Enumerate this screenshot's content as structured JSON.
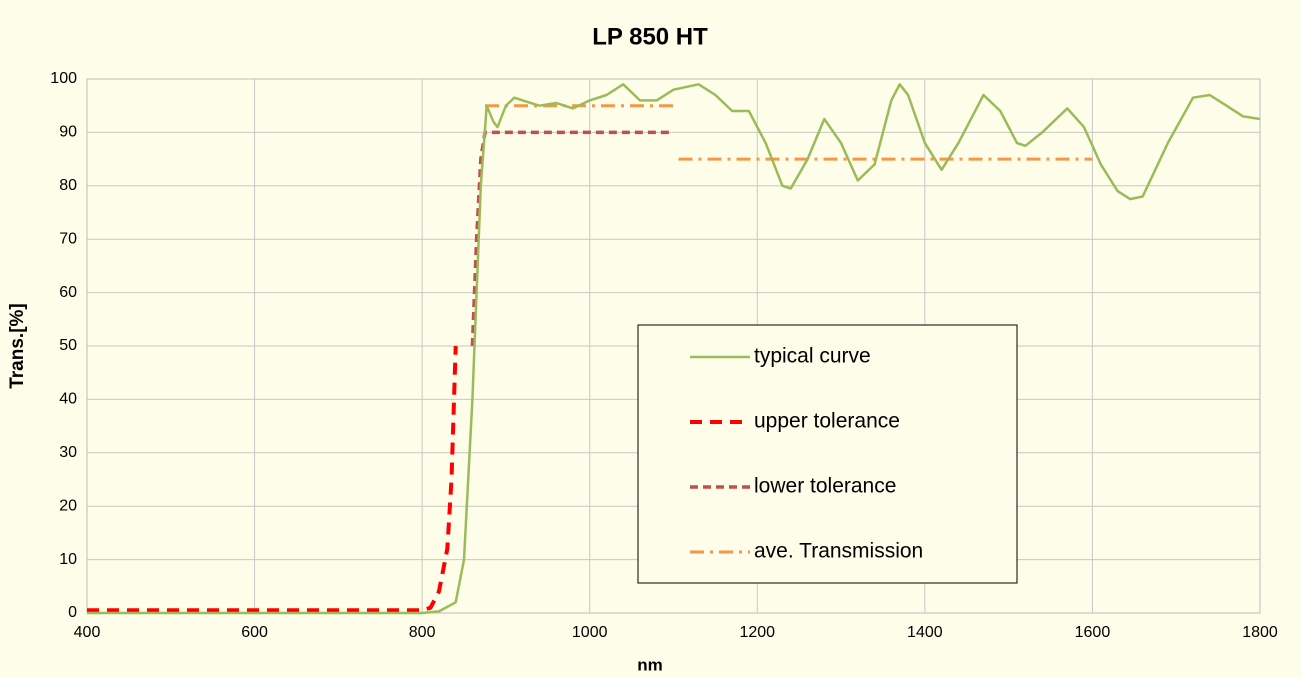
{
  "chart_data": {
    "type": "line",
    "title": "LP 850 HT",
    "xlabel": "nm",
    "ylabel": "Trans.[%]",
    "xlim": [
      400,
      1800
    ],
    "xticks": [
      400,
      600,
      800,
      1000,
      1200,
      1400,
      1600,
      1800
    ],
    "ylim": [
      0,
      100
    ],
    "yticks": [
      0,
      10,
      20,
      30,
      40,
      50,
      60,
      70,
      80,
      90,
      100
    ],
    "grid": true,
    "legend": "center",
    "series": [
      {
        "name": "typical curve",
        "color": "#9bbb59",
        "style": "solid",
        "x": [
          400,
          800,
          820,
          840,
          850,
          860,
          870,
          877,
          885,
          890,
          900,
          910,
          920,
          940,
          960,
          980,
          1000,
          1020,
          1040,
          1060,
          1080,
          1100,
          1130,
          1150,
          1170,
          1190,
          1210,
          1230,
          1240,
          1260,
          1280,
          1300,
          1320,
          1340,
          1360,
          1370,
          1380,
          1400,
          1420,
          1440,
          1470,
          1490,
          1510,
          1520,
          1540,
          1570,
          1590,
          1610,
          1630,
          1645,
          1660,
          1690,
          1720,
          1740,
          1760,
          1780,
          1800
        ],
        "values": [
          0,
          0,
          0.3,
          2,
          10,
          40,
          80,
          95,
          92,
          91,
          95,
          96.5,
          96,
          95,
          95.5,
          94.5,
          96,
          97,
          99,
          96,
          96,
          98,
          99,
          97,
          94,
          94,
          88,
          80,
          79.5,
          85,
          92.5,
          88,
          81,
          84,
          96,
          99,
          97,
          88,
          83,
          88,
          97,
          94,
          88,
          87.5,
          90,
          94.5,
          91,
          84,
          79,
          77.5,
          78,
          88,
          96.5,
          97,
          95,
          93,
          92.5
        ]
      },
      {
        "name": "upper tolerance",
        "color": "#ff0000",
        "style": "dash",
        "x": [
          400,
          800,
          810,
          820,
          830,
          835,
          840
        ],
        "values": [
          0.5,
          0.5,
          1,
          4,
          12,
          25,
          50
        ]
      },
      {
        "name": "lower tolerance",
        "color": "#c0504d",
        "style": "shortdash",
        "x": [
          860,
          865,
          870,
          875,
          1100
        ],
        "values": [
          50,
          70,
          85,
          90,
          90
        ]
      },
      {
        "name": "ave. Transmission",
        "color": "#f79646",
        "style": "dashdot",
        "x": [
          875,
          1100,
          1100,
          1106,
          1600
        ],
        "values": [
          95,
          95,
          null,
          85,
          85
        ]
      }
    ]
  }
}
